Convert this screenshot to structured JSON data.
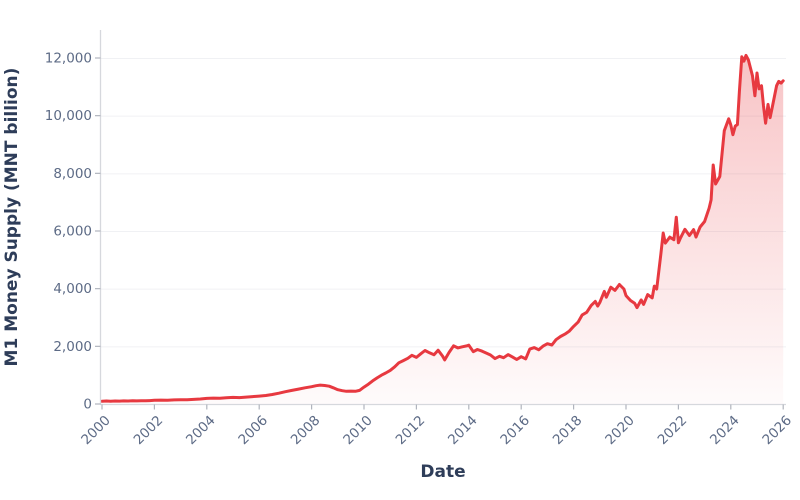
{
  "chart_data": {
    "type": "area",
    "title": "",
    "xlabel": "Date",
    "ylabel": "M1 Money Supply (MNT billion)",
    "legend": false,
    "grid": "horizontal-only",
    "x_ticks": [
      2000,
      2002,
      2004,
      2006,
      2008,
      2010,
      2012,
      2014,
      2016,
      2018,
      2020,
      2022,
      2024,
      2026
    ],
    "x_tick_rotation": -45,
    "y_ticks": [
      0,
      2000,
      4000,
      6000,
      8000,
      10000,
      12000
    ],
    "y_tick_format": "comma-thousands",
    "xlim": [
      2000,
      2026.3
    ],
    "ylim": [
      0,
      12970
    ],
    "colors": {
      "line": "#e73940",
      "fill": "#e73940",
      "fill_opacity_top": 0.32,
      "fill_opacity_bottom": 0.02,
      "axis_title": "#2e3d59",
      "tick_label": "#5d6b86",
      "axis_line": "#d6d8dd",
      "tick_mark": "#b0b4bd",
      "grid_line": "#f0f1f4",
      "background": "#ffffff"
    },
    "series": [
      {
        "name": "M1 Money Supply",
        "points": [
          [
            2000.0,
            95
          ],
          [
            2000.17,
            103
          ],
          [
            2000.33,
            96
          ],
          [
            2000.5,
            104
          ],
          [
            2000.67,
            99
          ],
          [
            2000.83,
            108
          ],
          [
            2001.0,
            104
          ],
          [
            2001.17,
            111
          ],
          [
            2001.33,
            106
          ],
          [
            2001.5,
            114
          ],
          [
            2001.67,
            110
          ],
          [
            2001.83,
            118
          ],
          [
            2002.0,
            127
          ],
          [
            2002.25,
            136
          ],
          [
            2002.5,
            131
          ],
          [
            2002.75,
            142
          ],
          [
            2003.0,
            148
          ],
          [
            2003.25,
            144
          ],
          [
            2003.5,
            158
          ],
          [
            2003.75,
            172
          ],
          [
            2004.0,
            193
          ],
          [
            2004.25,
            205
          ],
          [
            2004.5,
            199
          ],
          [
            2004.75,
            216
          ],
          [
            2005.0,
            228
          ],
          [
            2005.25,
            223
          ],
          [
            2005.5,
            240
          ],
          [
            2005.75,
            256
          ],
          [
            2006.0,
            273
          ],
          [
            2006.25,
            296
          ],
          [
            2006.5,
            331
          ],
          [
            2006.75,
            376
          ],
          [
            2007.0,
            426
          ],
          [
            2007.25,
            470
          ],
          [
            2007.5,
            516
          ],
          [
            2007.75,
            561
          ],
          [
            2008.0,
            601
          ],
          [
            2008.17,
            636
          ],
          [
            2008.33,
            656
          ],
          [
            2008.5,
            641
          ],
          [
            2008.67,
            616
          ],
          [
            2008.83,
            562
          ],
          [
            2009.0,
            496
          ],
          [
            2009.17,
            463
          ],
          [
            2009.33,
            439
          ],
          [
            2009.5,
            449
          ],
          [
            2009.67,
            441
          ],
          [
            2009.83,
            471
          ],
          [
            2010.0,
            586
          ],
          [
            2010.17,
            691
          ],
          [
            2010.33,
            801
          ],
          [
            2010.5,
            906
          ],
          [
            2010.67,
            1001
          ],
          [
            2010.83,
            1076
          ],
          [
            2011.0,
            1165
          ],
          [
            2011.17,
            1290
          ],
          [
            2011.33,
            1430
          ],
          [
            2011.5,
            1505
          ],
          [
            2011.67,
            1585
          ],
          [
            2011.83,
            1690
          ],
          [
            2012.0,
            1615
          ],
          [
            2012.17,
            1745
          ],
          [
            2012.33,
            1855
          ],
          [
            2012.5,
            1775
          ],
          [
            2012.67,
            1705
          ],
          [
            2012.83,
            1865
          ],
          [
            2013.0,
            1660
          ],
          [
            2013.08,
            1530
          ],
          [
            2013.25,
            1790
          ],
          [
            2013.42,
            2020
          ],
          [
            2013.58,
            1945
          ],
          [
            2013.75,
            1985
          ],
          [
            2013.92,
            2015
          ],
          [
            2014.0,
            2040
          ],
          [
            2014.17,
            1815
          ],
          [
            2014.33,
            1890
          ],
          [
            2014.5,
            1835
          ],
          [
            2014.67,
            1765
          ],
          [
            2014.83,
            1700
          ],
          [
            2015.0,
            1575
          ],
          [
            2015.17,
            1655
          ],
          [
            2015.33,
            1605
          ],
          [
            2015.5,
            1715
          ],
          [
            2015.67,
            1625
          ],
          [
            2015.83,
            1545
          ],
          [
            2016.0,
            1640
          ],
          [
            2016.17,
            1565
          ],
          [
            2016.33,
            1905
          ],
          [
            2016.5,
            1955
          ],
          [
            2016.67,
            1880
          ],
          [
            2016.83,
            2005
          ],
          [
            2017.0,
            2090
          ],
          [
            2017.17,
            2045
          ],
          [
            2017.33,
            2230
          ],
          [
            2017.5,
            2340
          ],
          [
            2017.67,
            2425
          ],
          [
            2017.83,
            2520
          ],
          [
            2018.0,
            2690
          ],
          [
            2018.17,
            2840
          ],
          [
            2018.33,
            3090
          ],
          [
            2018.5,
            3180
          ],
          [
            2018.67,
            3420
          ],
          [
            2018.83,
            3560
          ],
          [
            2018.92,
            3395
          ],
          [
            2019.0,
            3520
          ],
          [
            2019.17,
            3905
          ],
          [
            2019.25,
            3705
          ],
          [
            2019.42,
            4050
          ],
          [
            2019.58,
            3940
          ],
          [
            2019.75,
            4145
          ],
          [
            2019.92,
            3990
          ],
          [
            2020.0,
            3760
          ],
          [
            2020.17,
            3590
          ],
          [
            2020.33,
            3495
          ],
          [
            2020.42,
            3345
          ],
          [
            2020.58,
            3610
          ],
          [
            2020.67,
            3455
          ],
          [
            2020.83,
            3795
          ],
          [
            2021.0,
            3680
          ],
          [
            2021.08,
            4090
          ],
          [
            2021.17,
            3990
          ],
          [
            2021.33,
            5180
          ],
          [
            2021.42,
            5930
          ],
          [
            2021.5,
            5580
          ],
          [
            2021.67,
            5790
          ],
          [
            2021.83,
            5700
          ],
          [
            2021.92,
            6480
          ],
          [
            2022.0,
            5590
          ],
          [
            2022.08,
            5760
          ],
          [
            2022.25,
            6060
          ],
          [
            2022.42,
            5845
          ],
          [
            2022.58,
            6050
          ],
          [
            2022.67,
            5790
          ],
          [
            2022.83,
            6140
          ],
          [
            2023.0,
            6330
          ],
          [
            2023.17,
            6790
          ],
          [
            2023.25,
            7080
          ],
          [
            2023.33,
            8290
          ],
          [
            2023.42,
            7630
          ],
          [
            2023.58,
            7890
          ],
          [
            2023.75,
            9480
          ],
          [
            2023.92,
            9890
          ],
          [
            2024.0,
            9680
          ],
          [
            2024.08,
            9340
          ],
          [
            2024.17,
            9640
          ],
          [
            2024.25,
            9690
          ],
          [
            2024.33,
            10840
          ],
          [
            2024.42,
            12040
          ],
          [
            2024.5,
            11890
          ],
          [
            2024.58,
            12090
          ],
          [
            2024.67,
            11930
          ],
          [
            2024.83,
            11380
          ],
          [
            2024.92,
            10690
          ],
          [
            2025.0,
            11480
          ],
          [
            2025.08,
            10930
          ],
          [
            2025.17,
            11040
          ],
          [
            2025.25,
            10340
          ],
          [
            2025.33,
            9740
          ],
          [
            2025.42,
            10390
          ],
          [
            2025.5,
            9930
          ],
          [
            2025.58,
            10280
          ],
          [
            2025.75,
            11040
          ],
          [
            2025.83,
            11190
          ],
          [
            2025.92,
            11130
          ],
          [
            2026.0,
            11210
          ]
        ]
      }
    ]
  }
}
